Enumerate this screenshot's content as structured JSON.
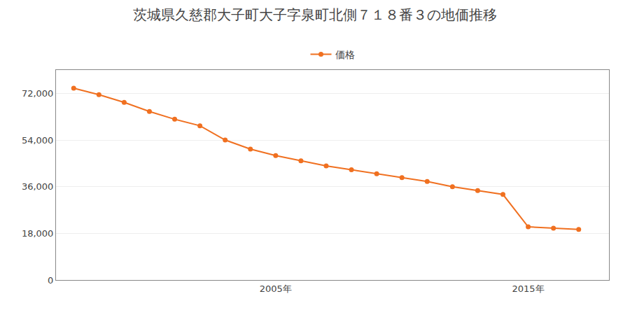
{
  "chart_data": {
    "type": "line",
    "title": "茨城県久慈郡大子町大子字泉町北側７１８番３の地価推移",
    "x": [
      1997,
      1998,
      1999,
      2000,
      2001,
      2002,
      2003,
      2004,
      2005,
      2006,
      2007,
      2008,
      2009,
      2010,
      2011,
      2012,
      2013,
      2014,
      2015,
      2016,
      2017
    ],
    "series": [
      {
        "name": "価格",
        "color": "#f07020",
        "marker": "circle",
        "line_style": "solid",
        "values": [
          74000,
          71500,
          68500,
          65000,
          62000,
          59500,
          54000,
          50500,
          48000,
          46000,
          44000,
          42500,
          41000,
          39500,
          38000,
          36000,
          34500,
          33000,
          20500,
          20000,
          19500
        ]
      }
    ],
    "xlim": [
      1996.3,
      2018.2
    ],
    "xticks": [
      {
        "value": 2005,
        "label": "2005年"
      },
      {
        "value": 2015,
        "label": "2015年"
      }
    ],
    "ylim": [
      0,
      81000
    ],
    "yticks": [
      0,
      {
        "value": 18000,
        "label": "18,000"
      },
      {
        "value": 36000,
        "label": "36,000"
      },
      {
        "value": 54000,
        "label": "54,000"
      },
      {
        "value": 72000,
        "label": "72,000"
      }
    ],
    "grid": true,
    "legend": "top"
  }
}
